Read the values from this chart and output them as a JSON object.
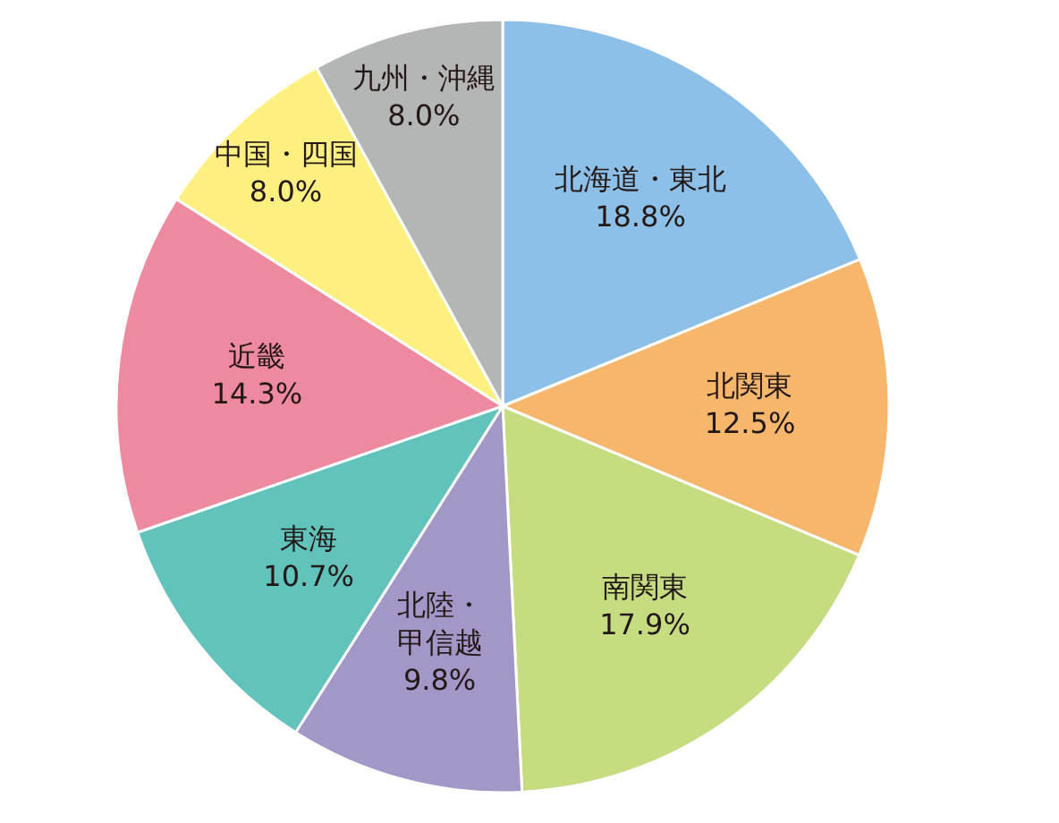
{
  "chart_data": {
    "type": "pie",
    "categories": [
      "北海道・東北",
      "北関東",
      "南関東",
      "北陸・甲信越",
      "東海",
      "近畿",
      "中国・四国",
      "九州・沖縄"
    ],
    "values": [
      18.8,
      12.5,
      17.9,
      9.8,
      10.7,
      14.3,
      8.0,
      8.0
    ],
    "colors": [
      "#8cc0e8",
      "#f6b66c",
      "#c6dc80",
      "#a397c8",
      "#62c2bc",
      "#ee8aa0",
      "#fef080",
      "#b4b5b5"
    ],
    "value_labels": [
      "18.8%",
      "12.5%",
      "17.9%",
      "9.8%",
      "10.7%",
      "14.3%",
      "8.0%",
      "8.0%"
    ]
  }
}
